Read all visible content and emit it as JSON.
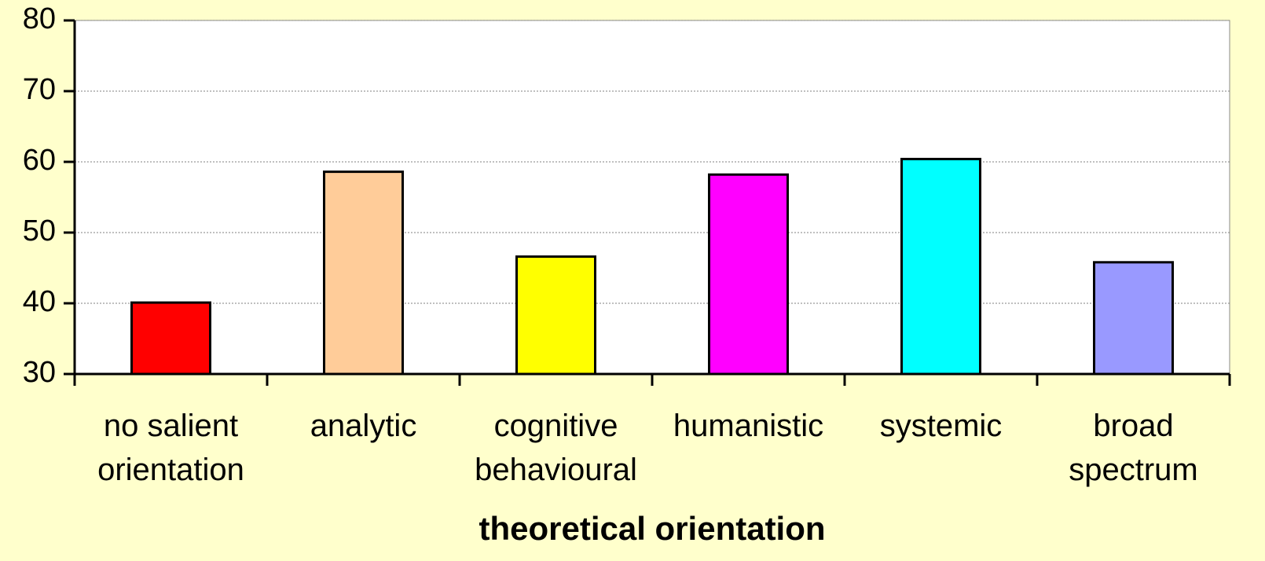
{
  "chart_data": {
    "type": "bar",
    "x_label": "theoretical orientation",
    "categories": [
      "no salient\norientation",
      "analytic",
      "cognitive\nbehavioural",
      "humanistic",
      "systemic",
      "broad\nspectrum"
    ],
    "values": [
      40.1,
      58.6,
      46.6,
      58.2,
      60.4,
      45.8
    ],
    "colors": [
      "#ff0000",
      "#ffcc99",
      "#ffff00",
      "#ff00ff",
      "#00ffff",
      "#9999ff"
    ],
    "ylim": [
      30,
      80
    ],
    "yticks": [
      30,
      40,
      50,
      60,
      70,
      80
    ],
    "grid": true
  }
}
